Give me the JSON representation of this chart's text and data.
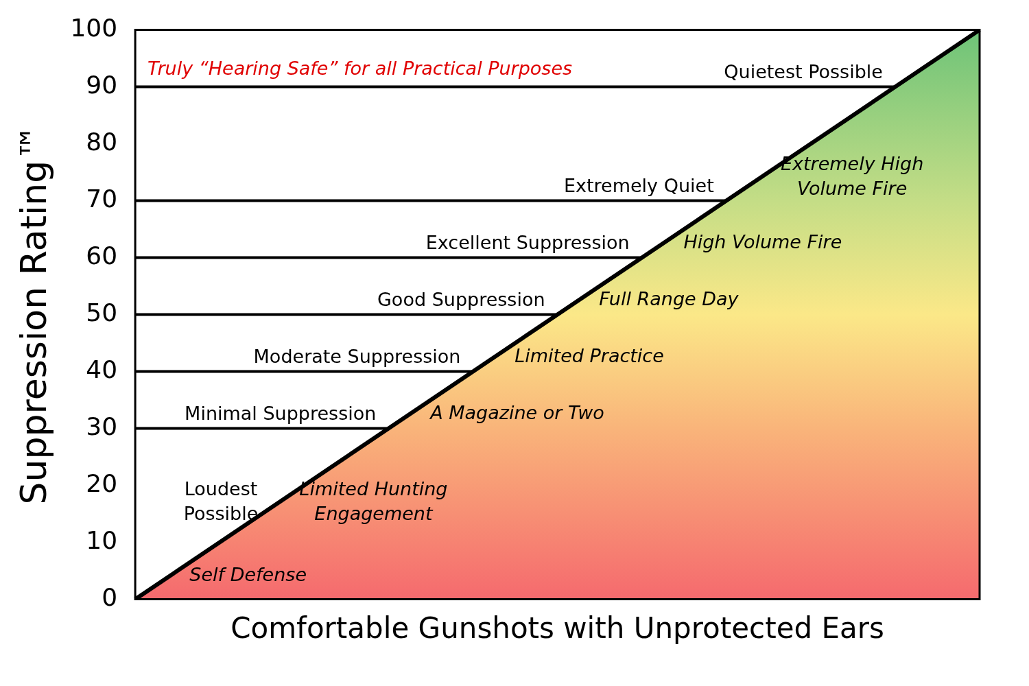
{
  "chart_data": {
    "type": "area",
    "xlabel": "Comfortable Gunshots with Unprotected Ears",
    "ylabel": "Suppression Rating™",
    "categories": [
      null,
      null
    ],
    "series": [
      {
        "color": "#000000",
        "values": [
          0,
          100
        ]
      }
    ],
    "ylim": [
      0,
      100
    ],
    "yticks": [
      0,
      10,
      20,
      30,
      40,
      50,
      60,
      70,
      80,
      90,
      100
    ],
    "grid": false,
    "legend": false,
    "ref_lines": [
      {
        "axis": "y",
        "value": 90,
        "label": "Quietest Possible"
      },
      {
        "axis": "y",
        "value": 70,
        "label": "Extremely Quiet"
      },
      {
        "axis": "y",
        "value": 60,
        "label": "Excellent Suppression"
      },
      {
        "axis": "y",
        "value": 50,
        "label": "Good Suppression"
      },
      {
        "axis": "y",
        "value": 40,
        "label": "Moderate Suppression"
      },
      {
        "axis": "y",
        "value": 30,
        "label": "Minimal Suppression"
      }
    ],
    "annotations": [
      "Truly “Hearing Safe” for all Practical Purposes",
      "Loudest Possible",
      "Extremely High Volume Fire",
      "High Volume Fire",
      "Full Range Day",
      "Limited Practice",
      "A Magazine or Two",
      "Limited Hunting Engagement",
      "Self Defense"
    ]
  }
}
